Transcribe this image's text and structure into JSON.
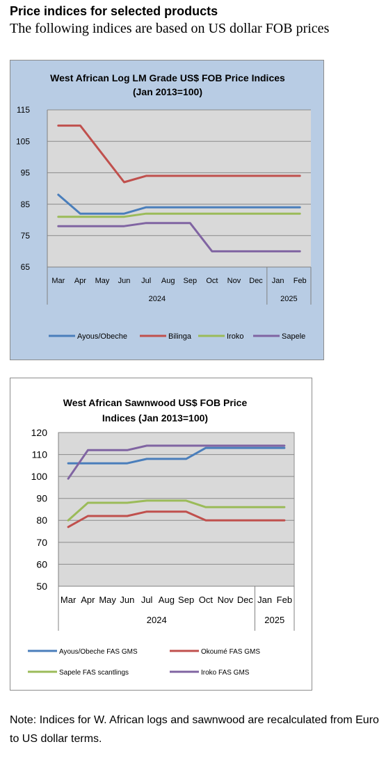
{
  "header": {
    "title": "Price indices for selected products",
    "subtitle": "The following indices are based on US dollar FOB prices"
  },
  "note": "Note: Indices for W. African logs and sawnwood are recalculated from Euro to US dollar terms.",
  "chart_data": [
    {
      "type": "line",
      "title": "West African Log LM Grade US$ FOB Price Indices",
      "subtitle": "(Jan 2013=100)",
      "categories": [
        "Mar",
        "Apr",
        "May",
        "Jun",
        "Jul",
        "Aug",
        "Sep",
        "Oct",
        "Nov",
        "Dec",
        "Jan",
        "Feb"
      ],
      "year_groups": [
        {
          "label": "2024",
          "count": 10
        },
        {
          "label": "2025",
          "count": 2
        }
      ],
      "ylim": [
        65,
        115
      ],
      "yticks": [
        65,
        75,
        85,
        95,
        105,
        115
      ],
      "grid": true,
      "legend_position": "bottom",
      "series": [
        {
          "name": "Ayous/Obeche",
          "color": "#4a7ebb",
          "values": [
            88,
            82,
            82,
            82,
            84,
            84,
            84,
            84,
            84,
            84,
            84,
            84
          ]
        },
        {
          "name": "Bilinga",
          "color": "#c0504d",
          "values": [
            110,
            110,
            101,
            92,
            94,
            94,
            94,
            94,
            94,
            94,
            94,
            94
          ]
        },
        {
          "name": "Iroko",
          "color": "#9bbb59",
          "values": [
            81,
            81,
            81,
            81,
            82,
            82,
            82,
            82,
            82,
            82,
            82,
            82
          ]
        },
        {
          "name": "Sapele",
          "color": "#8064a2",
          "values": [
            78,
            78,
            78,
            78,
            79,
            79,
            79,
            70,
            70,
            70,
            70,
            70
          ]
        }
      ]
    },
    {
      "type": "line",
      "title": "West African Sawnwood US$ FOB Price",
      "subtitle": "Indices (Jan 2013=100)",
      "categories": [
        "Mar",
        "Apr",
        "May",
        "Jun",
        "Jul",
        "Aug",
        "Sep",
        "Oct",
        "Nov",
        "Dec",
        "Jan",
        "Feb"
      ],
      "year_groups": [
        {
          "label": "2024",
          "count": 10
        },
        {
          "label": "2025",
          "count": 2
        }
      ],
      "ylim": [
        50,
        120
      ],
      "yticks": [
        50,
        60,
        70,
        80,
        90,
        100,
        110,
        120
      ],
      "grid": true,
      "legend_position": "bottom",
      "series": [
        {
          "name": "Ayous/Obeche  FAS GMS",
          "color": "#4a7ebb",
          "values": [
            106,
            106,
            106,
            106,
            108,
            108,
            108,
            113,
            113,
            113,
            113,
            113
          ]
        },
        {
          "name": "Okoumé  FAS GMS",
          "color": "#c0504d",
          "values": [
            77,
            82,
            82,
            82,
            84,
            84,
            84,
            80,
            80,
            80,
            80,
            80
          ]
        },
        {
          "name": "Sapele FAS scantlings",
          "color": "#9bbb59",
          "values": [
            80,
            88,
            88,
            88,
            89,
            89,
            89,
            86,
            86,
            86,
            86,
            86
          ]
        },
        {
          "name": "Iroko FAS GMS",
          "color": "#8064a2",
          "values": [
            99,
            112,
            112,
            112,
            114,
            114,
            114,
            114,
            114,
            114,
            114,
            114
          ]
        }
      ]
    }
  ]
}
